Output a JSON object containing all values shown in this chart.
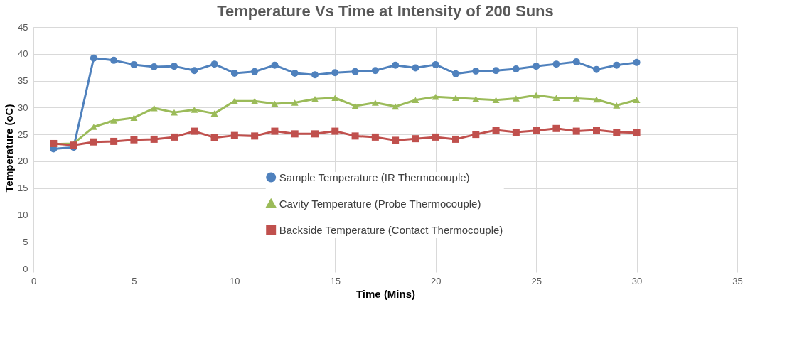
{
  "chart_data": {
    "type": "line",
    "title": "Temperature Vs Time at Intensity of 200 Suns",
    "xlabel": "Time (Mins)",
    "ylabel": "Temperature (oC)",
    "x": [
      1,
      2,
      3,
      4,
      5,
      6,
      7,
      8,
      9,
      10,
      11,
      12,
      13,
      14,
      15,
      16,
      17,
      18,
      19,
      20,
      21,
      22,
      23,
      24,
      25,
      26,
      27,
      28,
      29,
      30
    ],
    "series": [
      {
        "name": "Sample Temperature (IR Thermocouple)",
        "color": "#4f81bd",
        "marker": "circle",
        "values": [
          22.3,
          22.6,
          39.2,
          38.8,
          38.0,
          37.6,
          37.7,
          36.9,
          38.1,
          36.4,
          36.7,
          37.9,
          36.4,
          36.1,
          36.5,
          36.7,
          36.9,
          37.9,
          37.4,
          38.0,
          36.3,
          36.8,
          36.9,
          37.2,
          37.7,
          38.1,
          38.5,
          37.1,
          37.9,
          38.4
        ]
      },
      {
        "name": "Cavity Temperature (Probe Thermocouple)",
        "color": "#9bbb59",
        "marker": "triangle",
        "values": [
          23.2,
          23.3,
          26.4,
          27.6,
          28.1,
          29.9,
          29.1,
          29.6,
          28.9,
          31.2,
          31.2,
          30.7,
          30.9,
          31.6,
          31.8,
          30.3,
          30.9,
          30.2,
          31.4,
          32.0,
          31.8,
          31.6,
          31.4,
          31.7,
          32.3,
          31.8,
          31.7,
          31.5,
          30.4,
          31.4
        ]
      },
      {
        "name": "Backside Temperature (Contact Thermocouple)",
        "color": "#c0504d",
        "marker": "square",
        "values": [
          23.3,
          23.0,
          23.6,
          23.7,
          24.0,
          24.1,
          24.5,
          25.6,
          24.4,
          24.8,
          24.7,
          25.6,
          25.1,
          25.1,
          25.6,
          24.7,
          24.5,
          23.9,
          24.2,
          24.5,
          24.1,
          25.0,
          25.8,
          25.4,
          25.7,
          26.1,
          25.6,
          25.8,
          25.4,
          25.3
        ]
      }
    ],
    "xlim": [
      0,
      35
    ],
    "xticks": [
      0,
      5,
      10,
      15,
      20,
      25,
      30,
      35
    ],
    "ylim": [
      0,
      45
    ],
    "yticks": [
      0,
      5,
      10,
      15,
      20,
      25,
      30,
      35,
      40,
      45
    ],
    "grid": true,
    "legend": "bottom",
    "line_style": "solid"
  }
}
